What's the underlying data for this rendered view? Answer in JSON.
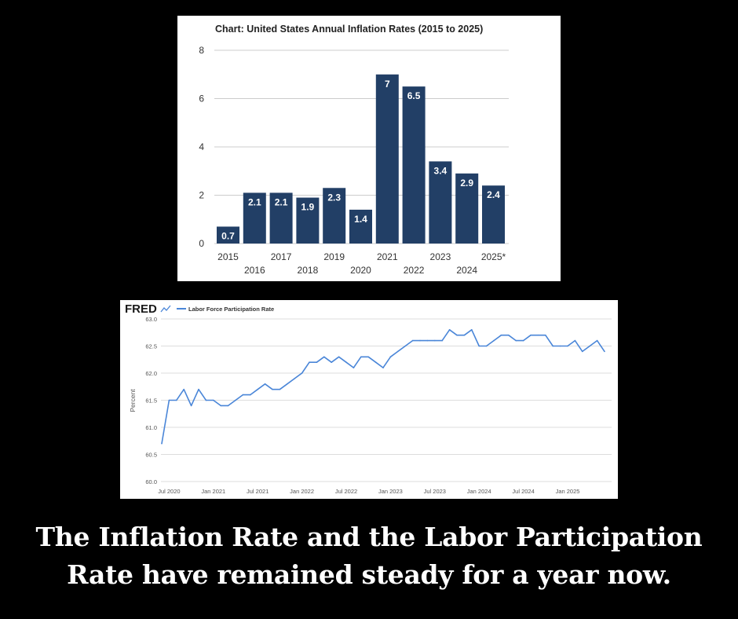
{
  "inflation": {
    "title": "Chart: United States Annual Inflation Rates (2015 to 2025)",
    "y_ticks": [
      "0",
      "2",
      "4",
      "6",
      "8"
    ],
    "colors": {
      "bar": "#223f66",
      "bar_label": "#ffffff",
      "grid": "#cccccc"
    }
  },
  "fred": {
    "logo": "FRED",
    "legend": "Labor Force Participation Rate",
    "ylabel": "Percent",
    "y_ticks": [
      "60.0",
      "60.5",
      "61.0",
      "61.5",
      "62.0",
      "62.5",
      "63.0"
    ],
    "x_ticks": [
      "Jul 2020",
      "Jan 2021",
      "Jul 2021",
      "Jan 2022",
      "Jul 2022",
      "Jan 2023",
      "Jul 2023",
      "Jan 2024",
      "Jul 2024",
      "Jan 2025"
    ],
    "colors": {
      "line": "#4a86d8",
      "grid": "#dddddd",
      "text": "#555555"
    }
  },
  "caption": {
    "line1": "The Inflation Rate and the Labor Participation",
    "line2": "Rate have remained steady for a year now."
  },
  "chart_data": [
    {
      "type": "bar",
      "title": "Chart: United States Annual Inflation Rates (2015 to 2025)",
      "xlabel": "",
      "ylabel": "",
      "categories": [
        "2015",
        "2016",
        "2017",
        "2018",
        "2019",
        "2020",
        "2021",
        "2022",
        "2023",
        "2024",
        "2025*"
      ],
      "values": [
        0.7,
        2.1,
        2.1,
        1.9,
        2.3,
        1.4,
        7,
        6.5,
        3.4,
        2.9,
        2.4
      ],
      "data_labels": [
        "0.7",
        "2.1",
        "2.1",
        "1.9",
        "2.3",
        "1.4",
        "7",
        "6.5",
        "3.4",
        "2.9",
        "2.4"
      ],
      "ylim": [
        0,
        8
      ],
      "grid": true,
      "legend": "none"
    },
    {
      "type": "line",
      "title": "",
      "xlabel": "",
      "ylabel": "Percent",
      "series": [
        {
          "name": "Labor Force Participation Rate",
          "x": [
            "2020-06",
            "2020-07",
            "2020-08",
            "2020-09",
            "2020-10",
            "2020-11",
            "2020-12",
            "2021-01",
            "2021-02",
            "2021-03",
            "2021-04",
            "2021-05",
            "2021-06",
            "2021-07",
            "2021-08",
            "2021-09",
            "2021-10",
            "2021-11",
            "2021-12",
            "2022-01",
            "2022-02",
            "2022-03",
            "2022-04",
            "2022-05",
            "2022-06",
            "2022-07",
            "2022-08",
            "2022-09",
            "2022-10",
            "2022-11",
            "2022-12",
            "2023-01",
            "2023-02",
            "2023-03",
            "2023-04",
            "2023-05",
            "2023-06",
            "2023-07",
            "2023-08",
            "2023-09",
            "2023-10",
            "2023-11",
            "2023-12",
            "2024-01",
            "2024-02",
            "2024-03",
            "2024-04",
            "2024-05",
            "2024-06",
            "2024-07",
            "2024-08",
            "2024-09",
            "2024-10",
            "2024-11",
            "2024-12",
            "2025-01",
            "2025-02",
            "2025-03",
            "2025-04",
            "2025-05",
            "2025-06"
          ],
          "values": [
            60.7,
            61.5,
            61.5,
            61.7,
            61.4,
            61.7,
            61.5,
            61.5,
            61.4,
            61.4,
            61.5,
            61.6,
            61.6,
            61.7,
            61.8,
            61.7,
            61.7,
            61.8,
            61.9,
            62.0,
            62.2,
            62.2,
            62.3,
            62.2,
            62.3,
            62.2,
            62.1,
            62.3,
            62.3,
            62.2,
            62.1,
            62.3,
            62.4,
            62.5,
            62.6,
            62.6,
            62.6,
            62.6,
            62.6,
            62.8,
            62.7,
            62.7,
            62.8,
            62.5,
            62.5,
            62.6,
            62.7,
            62.7,
            62.6,
            62.6,
            62.7,
            62.7,
            62.7,
            62.5,
            62.5,
            62.5,
            62.6,
            62.4,
            62.5,
            62.6,
            62.4
          ]
        }
      ],
      "ylim": [
        60.0,
        63.0
      ],
      "grid": true,
      "legend": "top-left"
    }
  ]
}
